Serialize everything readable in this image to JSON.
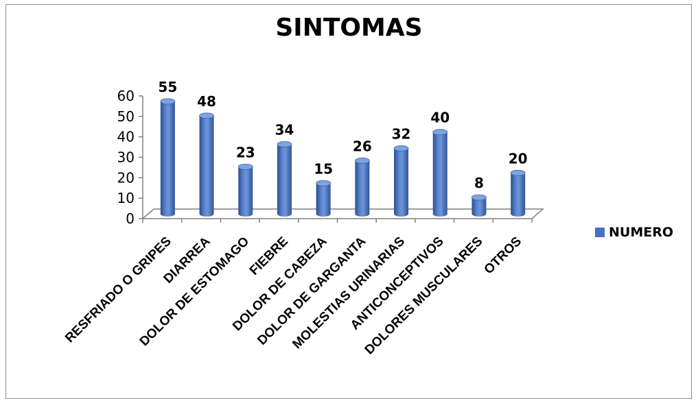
{
  "chart_data": {
    "type": "bar",
    "title": "SINTOMAS",
    "categories": [
      "RESFRIADO O GRIPES",
      "DIARREA",
      "DOLOR DE ESTOMAGO",
      "FIEBRE",
      "DOLOR DE CABEZA",
      "DOLOR DE GARGANTA",
      "MOLESTIAS URINARIAS",
      "ANTICONCEPTIVOS",
      "DOLORES MUSCULARES",
      "OTROS"
    ],
    "series": [
      {
        "name": "NUMERO",
        "values": [
          55,
          48,
          23,
          34,
          15,
          26,
          32,
          40,
          8,
          20
        ]
      }
    ],
    "y_ticks": [
      "0",
      "10",
      "20",
      "30",
      "40",
      "50",
      "60"
    ],
    "ylim": [
      0,
      60
    ],
    "data_labels": true,
    "legend_position": "right",
    "style": "3d-cylinder",
    "colors": {
      "bar": "#4472c4",
      "bar_dark": "#2a4f8f",
      "bar_light": "#7fa3de",
      "axis": "#7f7f7f"
    }
  }
}
